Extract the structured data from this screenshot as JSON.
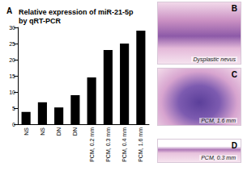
{
  "chart_data": {
    "type": "bar",
    "panel_label": "A",
    "title": "Relative expression of miR-21-5p by qRT-PCR",
    "categories": [
      "NS",
      "NS",
      "DN",
      "DN",
      "PCM, 0.2 mm",
      "PCM, 0.3 mm",
      "PCM, 0.4 mm",
      "PCM, 1.6 mm"
    ],
    "values": [
      3.8,
      6.8,
      5.2,
      9,
      14.5,
      23,
      25,
      29
    ],
    "color": "#000000",
    "ylim": [
      0,
      30
    ],
    "yticks": [
      0,
      5,
      10,
      15,
      20,
      25,
      30
    ],
    "grid": false
  },
  "images": [
    {
      "panel": "B",
      "caption": "Dysplastic nevus"
    },
    {
      "panel": "C",
      "caption": "PCM, 1.6 mm"
    },
    {
      "panel": "D",
      "caption": "PCM, 0.3 mm"
    }
  ]
}
